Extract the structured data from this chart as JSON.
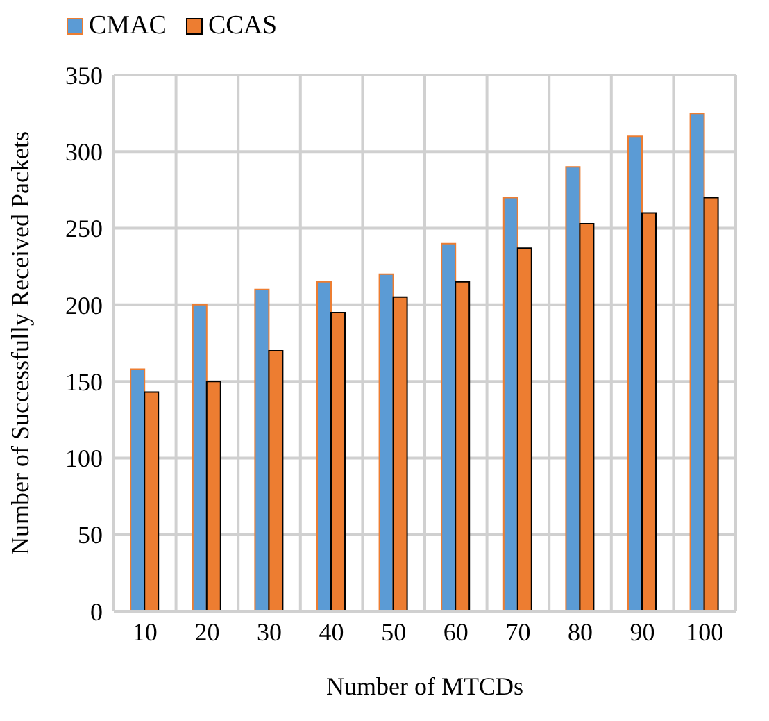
{
  "chart_data": {
    "type": "bar",
    "xlabel": "Number of MTCDs",
    "ylabel": "Number of Successfully Received Packets",
    "categories": [
      "10",
      "20",
      "30",
      "40",
      "50",
      "60",
      "70",
      "80",
      "90",
      "100"
    ],
    "series": [
      {
        "name": "CMAC",
        "color": "#5b9bd5",
        "values": [
          158,
          200,
          210,
          215,
          220,
          240,
          270,
          290,
          310,
          325
        ]
      },
      {
        "name": "CCAS",
        "color": "#ed7d31",
        "values": [
          143,
          150,
          170,
          195,
          205,
          215,
          237,
          253,
          260,
          270
        ]
      }
    ],
    "ylim": [
      0,
      350
    ],
    "yticks": [
      0,
      50,
      100,
      150,
      200,
      250,
      300,
      350
    ],
    "grid": true,
    "legend": "top left"
  }
}
